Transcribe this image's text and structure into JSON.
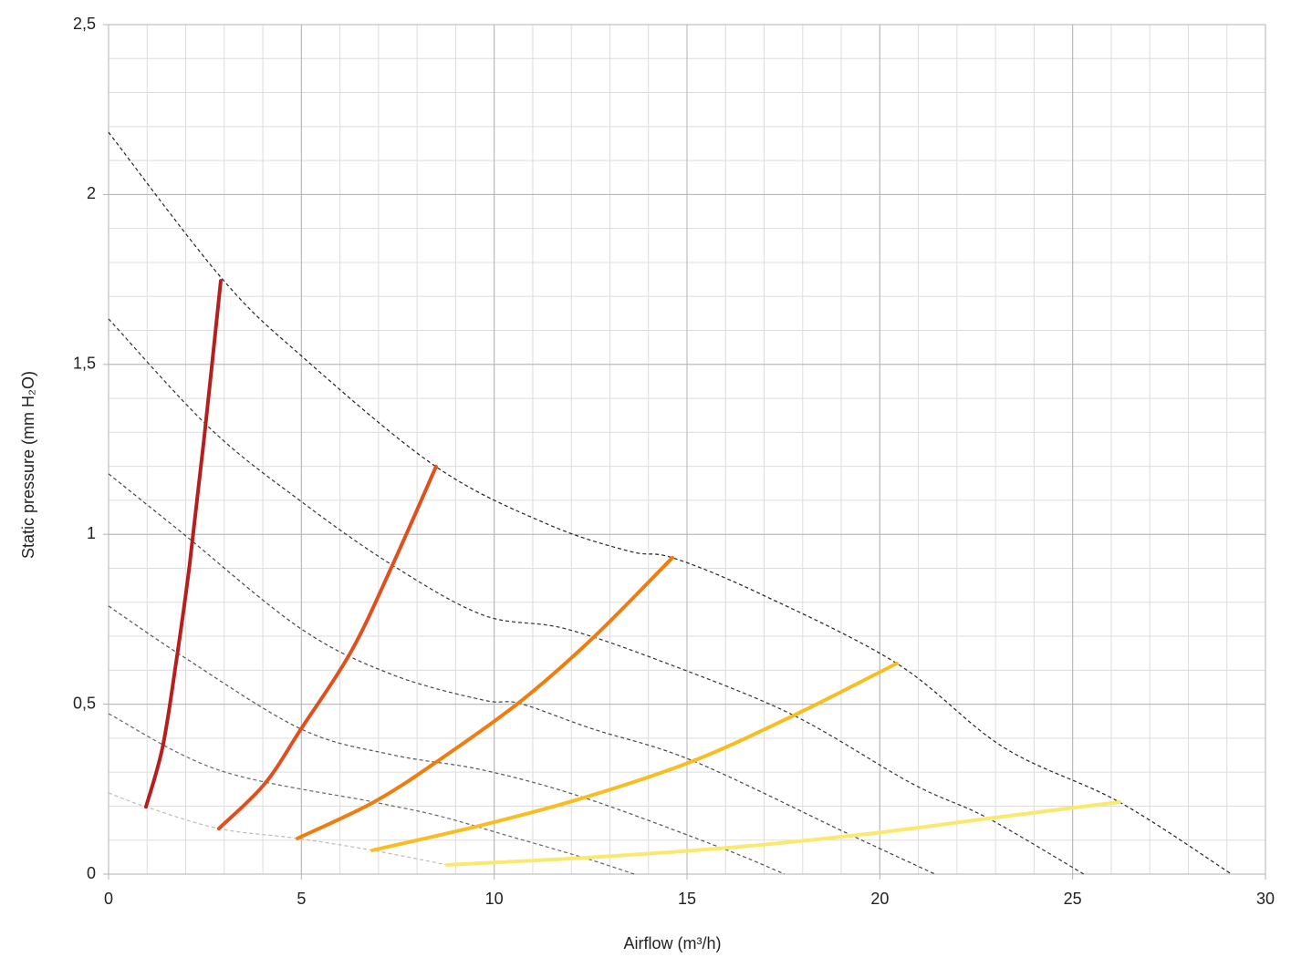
{
  "chart_data": {
    "type": "line",
    "x_label": "Airflow (m³/h)",
    "y_label": "Static pressure (mm H₂O)",
    "xlim": [
      0,
      30
    ],
    "ylim": [
      0,
      2.5
    ],
    "xticks": [
      0,
      5,
      10,
      15,
      20,
      25,
      30
    ],
    "yticks": [
      0,
      {
        "value": 0.5,
        "label": "0,5"
      },
      1,
      {
        "value": 1.5,
        "label": "1,5"
      },
      2,
      {
        "value": 2.5,
        "label": "2,5"
      }
    ],
    "grid": true,
    "minor_grid_step": [
      1,
      0.1
    ],
    "series": [
      {
        "color": "#222222",
        "dashed": true,
        "x": [
          0,
          2.93,
          4.99,
          8.49,
          11.38,
          13.51,
          14.62,
          16.82,
          20.44,
          23.21,
          26.21,
          29.12
        ],
        "values": [
          2.183,
          1.754,
          1.526,
          1.199,
          1.03,
          0.95,
          0.931,
          0.829,
          0.62,
          0.373,
          0.212,
          0
        ]
      },
      {
        "color": "#333333",
        "dashed": true,
        "x": [
          0,
          2.63,
          4.99,
          7.36,
          9.72,
          11.85,
          14.62,
          17.77,
          20.84,
          22.78,
          25.29
        ],
        "values": [
          1.634,
          1.312,
          1.097,
          0.909,
          0.762,
          0.722,
          0.614,
          0.467,
          0.266,
          0.166,
          0
        ]
      },
      {
        "color": "#444444",
        "dashed": true,
        "x": [
          0,
          1.92,
          4.99,
          7.36,
          9.72,
          10.67,
          12.56,
          15.16,
          19.19,
          21.43
        ],
        "values": [
          1.178,
          1.003,
          0.722,
          0.587,
          0.512,
          0.502,
          0.427,
          0.333,
          0.118,
          0
        ]
      },
      {
        "color": "#555555",
        "dashed": true,
        "x": [
          0,
          1.92,
          4.99,
          7.36,
          9.72,
          12.33,
          15.87,
          17.53
        ],
        "values": [
          0.789,
          0.641,
          0.427,
          0.351,
          0.306,
          0.225,
          0.078,
          0
        ]
      },
      {
        "color": "#666666",
        "dashed": true,
        "x": [
          0,
          2.86,
          6.88,
          8.54,
          10.2,
          12.33,
          13.63
        ],
        "values": [
          0.472,
          0.306,
          0.212,
          0.172,
          0.118,
          0.048,
          0
        ]
      },
      {
        "color": "#bbbbbb",
        "dashed": true,
        "x": [
          0,
          0.97,
          2.86,
          4.9,
          6.84,
          8.78
        ],
        "values": [
          0.239,
          0.198,
          0.134,
          0.105,
          0.07,
          0.027
        ]
      },
      {
        "color": "#b5201f",
        "dashed": false,
        "x": [
          0.97,
          1.4,
          1.75,
          2.1,
          2.48,
          2.91
        ],
        "values": [
          0.198,
          0.373,
          0.622,
          0.909,
          1.285,
          1.746
        ]
      },
      {
        "color": "#e0501e",
        "dashed": false,
        "x": [
          2.86,
          4.05,
          4.99,
          6.29,
          7.36,
          8.49
        ],
        "values": [
          0.134,
          0.266,
          0.427,
          0.655,
          0.909,
          1.199
        ]
      },
      {
        "color": "#ef7d0f",
        "dashed": false,
        "x": [
          4.9,
          6.88,
          8.54,
          10.67,
          12.56,
          14.62
        ],
        "values": [
          0.105,
          0.212,
          0.333,
          0.507,
          0.695,
          0.931
        ]
      },
      {
        "color": "#f8bd22",
        "dashed": false,
        "x": [
          6.84,
          9.72,
          12.33,
          15.16,
          17.77,
          20.44
        ],
        "values": [
          0.07,
          0.145,
          0.225,
          0.333,
          0.467,
          0.62
        ]
      },
      {
        "color": "#f9e96e",
        "dashed": false,
        "x": [
          8.78,
          12.33,
          16.11,
          19.66,
          22.97,
          26.21
        ],
        "values": [
          0.027,
          0.048,
          0.078,
          0.118,
          0.166,
          0.212
        ]
      }
    ]
  }
}
